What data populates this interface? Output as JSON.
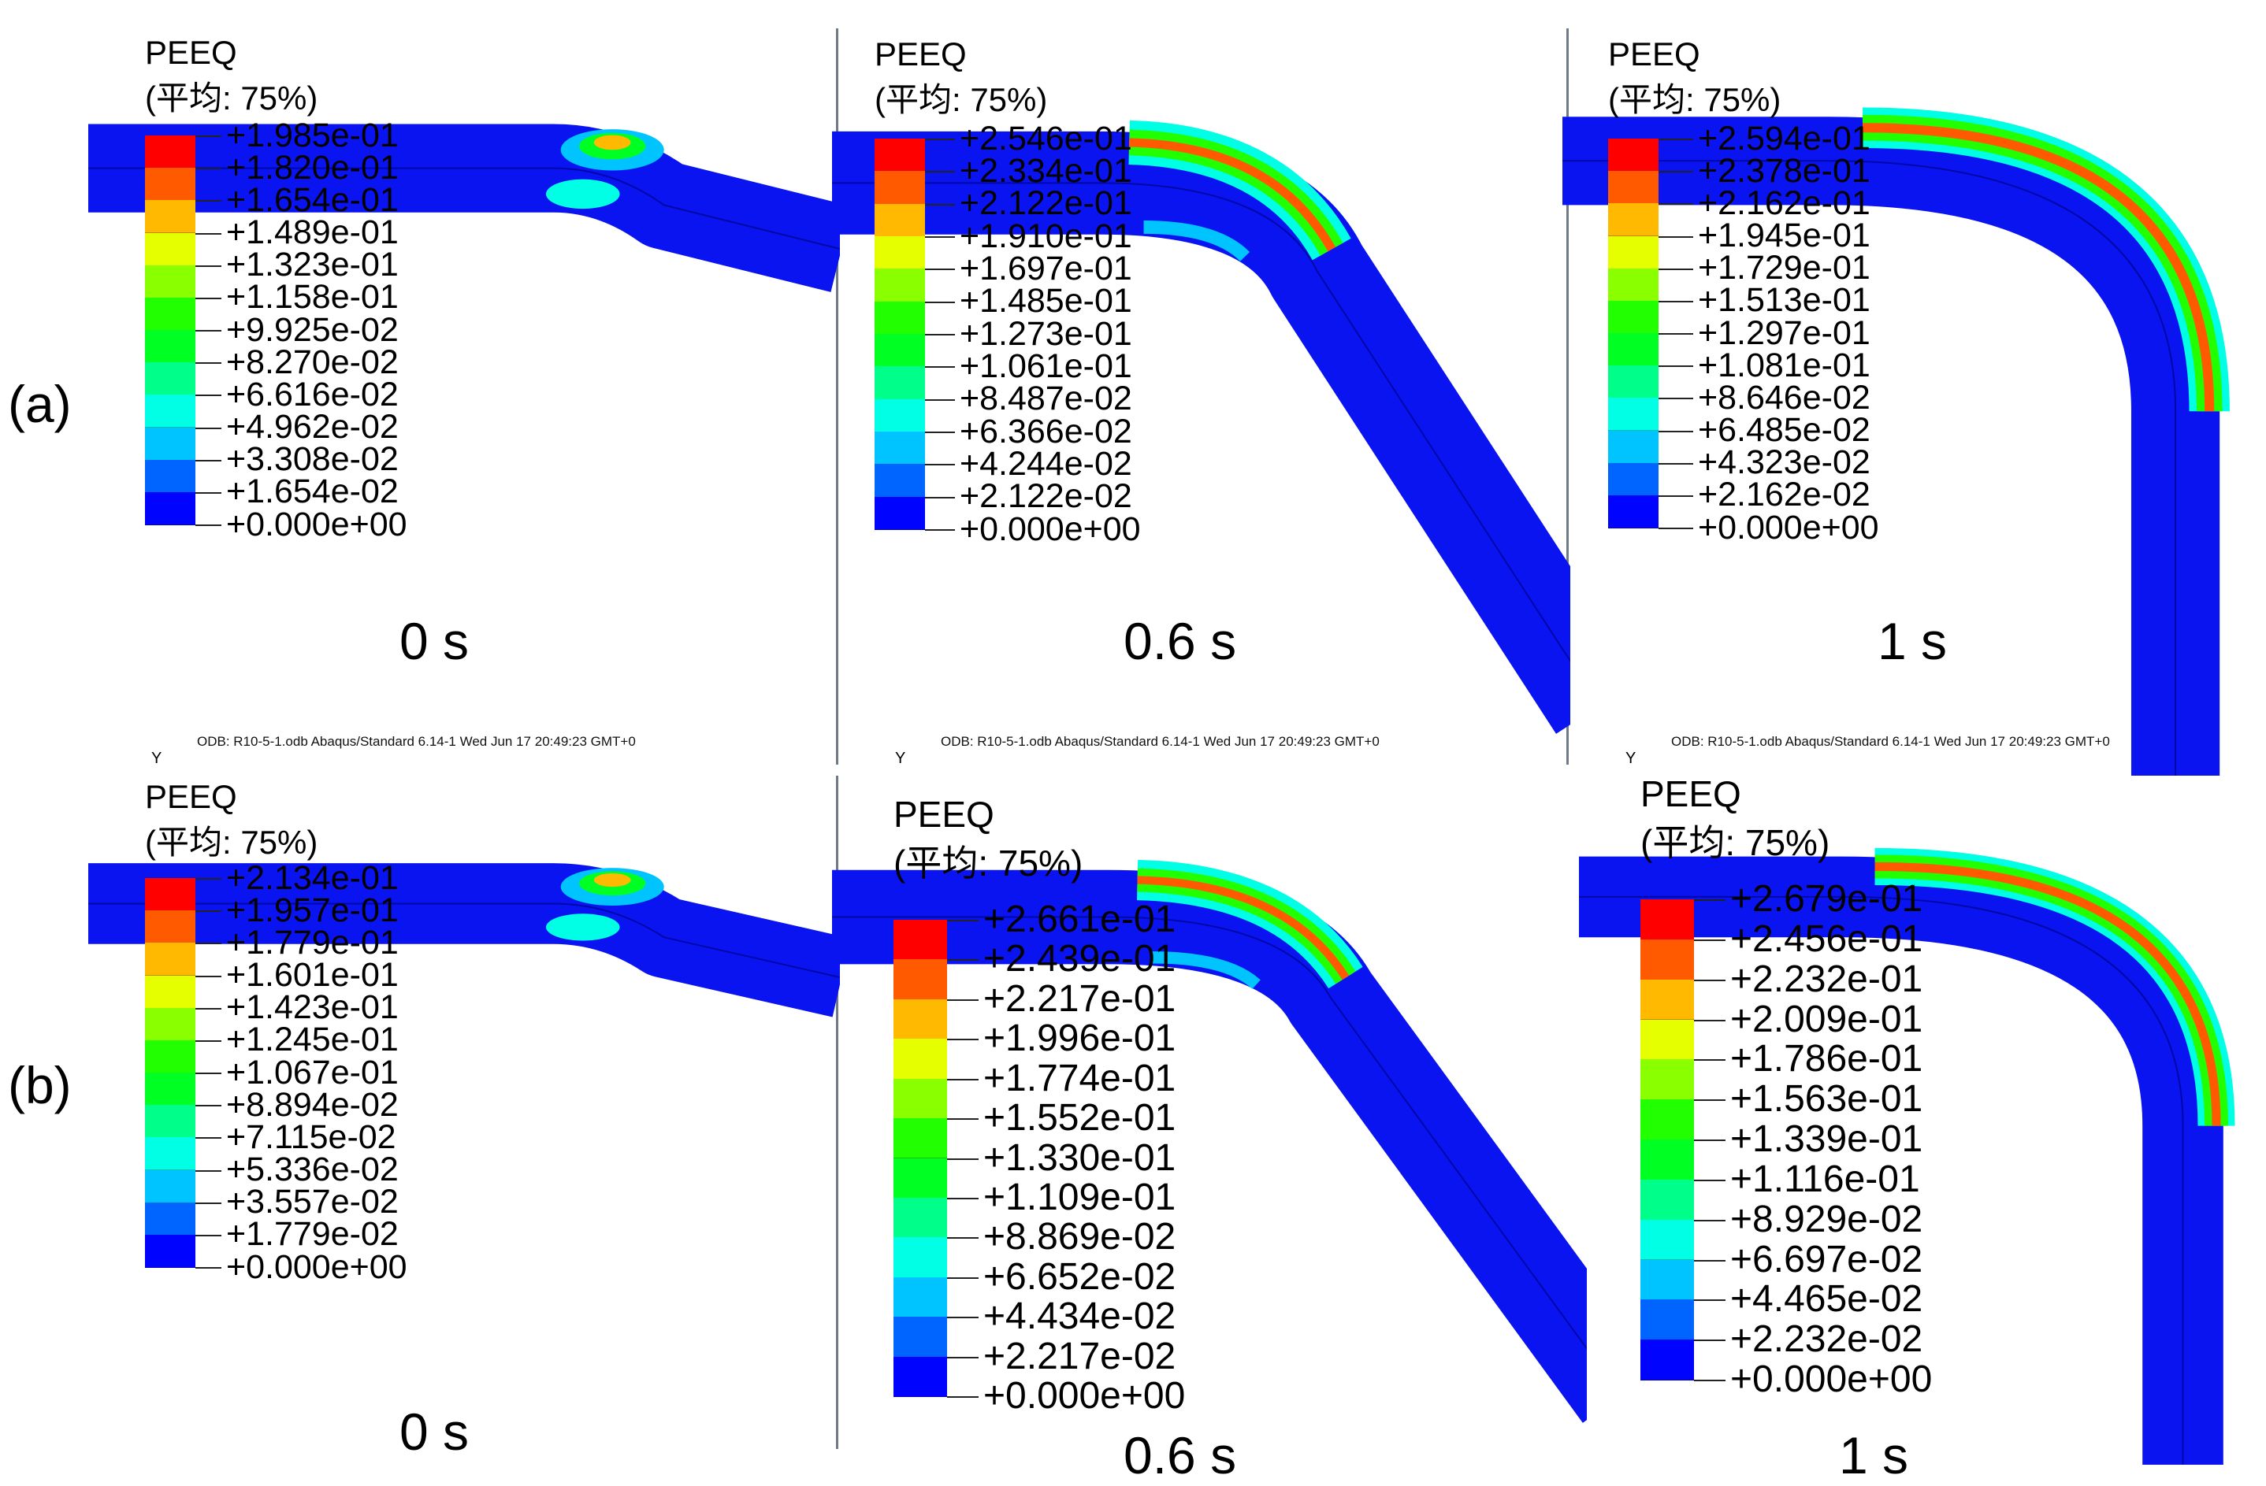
{
  "row_labels": [
    "(a)",
    "(b)"
  ],
  "colors": {
    "contour": [
      "#ff0000",
      "#ff5a00",
      "#ffb900",
      "#e6ff00",
      "#8aff00",
      "#22ff00",
      "#00ff22",
      "#00ff8a",
      "#00ffe4",
      "#00c4ff",
      "#0064ff",
      "#0004ff"
    ],
    "pipe": "#0a14f0"
  },
  "panels": [
    {
      "row": 0,
      "shape": "bend-small",
      "legend": {
        "title": "PEEQ",
        "subtitle": "(平均: 75%)",
        "values": [
          "+1.985e-01",
          "+1.820e-01",
          "+1.654e-01",
          "+1.489e-01",
          "+1.323e-01",
          "+1.158e-01",
          "+9.925e-02",
          "+8.270e-02",
          "+6.616e-02",
          "+4.962e-02",
          "+3.308e-02",
          "+1.654e-02",
          "+0.000e+00"
        ]
      },
      "time": "0 s",
      "footer": "ODB: R10-5-1.odb     Abaqus/Standard 6.14-1     Wed Jun 17 20:49:23 GMT+0",
      "axis_label": "Y"
    },
    {
      "row": 0,
      "shape": "bend-mid",
      "legend": {
        "title": "PEEQ",
        "subtitle": "(平均: 75%)",
        "values": [
          "+2.546e-01",
          "+2.334e-01",
          "+2.122e-01",
          "+1.910e-01",
          "+1.697e-01",
          "+1.485e-01",
          "+1.273e-01",
          "+1.061e-01",
          "+8.487e-02",
          "+6.366e-02",
          "+4.244e-02",
          "+2.122e-02",
          "+0.000e+00"
        ]
      },
      "time": "0.6 s",
      "footer": "ODB: R10-5-1.odb     Abaqus/Standard 6.14-1     Wed Jun 17 20:49:23 GMT+0",
      "axis_label": "Y"
    },
    {
      "row": 0,
      "shape": "bend-full",
      "legend": {
        "title": "PEEQ",
        "subtitle": "(平均: 75%)",
        "values": [
          "+2.594e-01",
          "+2.378e-01",
          "+2.162e-01",
          "+1.945e-01",
          "+1.729e-01",
          "+1.513e-01",
          "+1.297e-01",
          "+1.081e-01",
          "+8.646e-02",
          "+6.485e-02",
          "+4.323e-02",
          "+2.162e-02",
          "+0.000e+00"
        ]
      },
      "time": "1 s",
      "footer": "ODB: R10-5-1.odb     Abaqus/Standard 6.14-1     Wed Jun 17 20:49:23 GMT+0",
      "axis_label": "Y"
    },
    {
      "row": 1,
      "shape": "bend-small",
      "legend": {
        "title": "PEEQ",
        "subtitle": "(平均: 75%)",
        "values": [
          "+2.134e-01",
          "+1.957e-01",
          "+1.779e-01",
          "+1.601e-01",
          "+1.423e-01",
          "+1.245e-01",
          "+1.067e-01",
          "+8.894e-02",
          "+7.115e-02",
          "+5.336e-02",
          "+3.557e-02",
          "+1.779e-02",
          "+0.000e+00"
        ]
      },
      "time": "0 s"
    },
    {
      "row": 1,
      "shape": "bend-mid",
      "legend": {
        "title": "PEEQ",
        "subtitle": "(平均: 75%)",
        "values": [
          "+2.661e-01",
          "+2.439e-01",
          "+2.217e-01",
          "+1.996e-01",
          "+1.774e-01",
          "+1.552e-01",
          "+1.330e-01",
          "+1.109e-01",
          "+8.869e-02",
          "+6.652e-02",
          "+4.434e-02",
          "+2.217e-02",
          "+0.000e+00"
        ]
      },
      "time": "0.6 s"
    },
    {
      "row": 1,
      "shape": "bend-full",
      "legend": {
        "title": "PEEQ",
        "subtitle": "(平均: 75%)",
        "values": [
          "+2.679e-01",
          "+2.456e-01",
          "+2.232e-01",
          "+2.009e-01",
          "+1.786e-01",
          "+1.563e-01",
          "+1.339e-01",
          "+1.116e-01",
          "+8.929e-02",
          "+6.697e-02",
          "+4.465e-02",
          "+2.232e-02",
          "+0.000e+00"
        ]
      },
      "time": "1 s"
    }
  ]
}
